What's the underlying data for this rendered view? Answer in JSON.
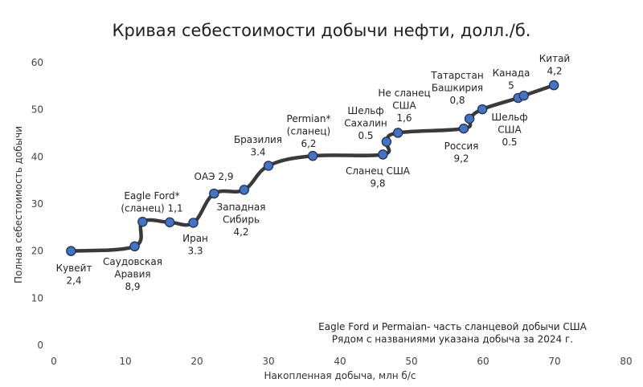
{
  "chart_data": {
    "type": "line",
    "title": "Кривая себестоимости добычи нефти, долл./б.",
    "xlabel": "Накопленная добыча, млн б/с",
    "ylabel": "Полная себестоимость добычи",
    "xlim": [
      0,
      80
    ],
    "ylim": [
      0,
      60
    ],
    "x_ticks": [
      "0",
      "10",
      "20",
      "30",
      "40",
      "50",
      "60",
      "70",
      "80"
    ],
    "y_ticks": [
      "0",
      "10",
      "20",
      "30",
      "40",
      "50",
      "60"
    ],
    "grid": false,
    "series": [
      {
        "color": "#3a3a3a",
        "marker_color": "#4472C4",
        "points": [
          {
            "x": 2.4,
            "y": 20
          },
          {
            "x": 11.3,
            "y": 21
          },
          {
            "x": 12.4,
            "y": 26.2
          },
          {
            "x": 16.2,
            "y": 26.1
          },
          {
            "x": 19.5,
            "y": 26
          },
          {
            "x": 22.4,
            "y": 32.2
          },
          {
            "x": 26.6,
            "y": 33
          },
          {
            "x": 30,
            "y": 38.1
          },
          {
            "x": 36.2,
            "y": 40.2
          },
          {
            "x": 46,
            "y": 40.5
          },
          {
            "x": 46.5,
            "y": 43.2
          },
          {
            "x": 48.1,
            "y": 45.1
          },
          {
            "x": 57.3,
            "y": 46
          },
          {
            "x": 58.1,
            "y": 48.1
          },
          {
            "x": 59.9,
            "y": 50.1
          },
          {
            "x": 64.9,
            "y": 52.5
          },
          {
            "x": 65.7,
            "y": 53
          },
          {
            "x": 69.9,
            "y": 55.2
          }
        ]
      }
    ],
    "annotations": [
      {
        "lines": [
          "Кувейт",
          "2,4"
        ]
      },
      {
        "lines": [
          "Саудовская",
          "Аравия",
          "8,9"
        ]
      },
      {
        "lines": [
          "Eagle Ford*",
          "(сланец) 1,1"
        ]
      },
      {
        "lines": [
          "Иран",
          "3.3"
        ]
      },
      {
        "lines": [
          "ОАЭ 2,9"
        ]
      },
      {
        "lines": [
          "Западная",
          "Сибирь",
          "4,2"
        ]
      },
      {
        "lines": [
          "Бразилия",
          "3.4"
        ]
      },
      {
        "lines": [
          "Permian*",
          "(сланец)",
          "6,2"
        ]
      },
      {
        "lines": [
          "Шельф",
          "Сахалин",
          "0.5"
        ]
      },
      {
        "lines": [
          "Сланец США",
          "9,8"
        ]
      },
      {
        "lines": [
          "Не сланец",
          "США",
          "1,6"
        ]
      },
      {
        "lines": [
          "Россия",
          "9,2"
        ]
      },
      {
        "lines": [
          "Татарстан",
          "Башкирия",
          "0,8"
        ]
      },
      {
        "lines": [
          "Шельф",
          "США",
          "0.5"
        ]
      },
      {
        "lines": [
          "Канада",
          "5"
        ]
      },
      {
        "lines": [
          "Китай",
          "4,2"
        ]
      }
    ],
    "note": [
      "Eagle Ford и Permaian- часть сланцевой добычи США",
      "Рядом с названиями указана добыча за 2024 г."
    ]
  }
}
